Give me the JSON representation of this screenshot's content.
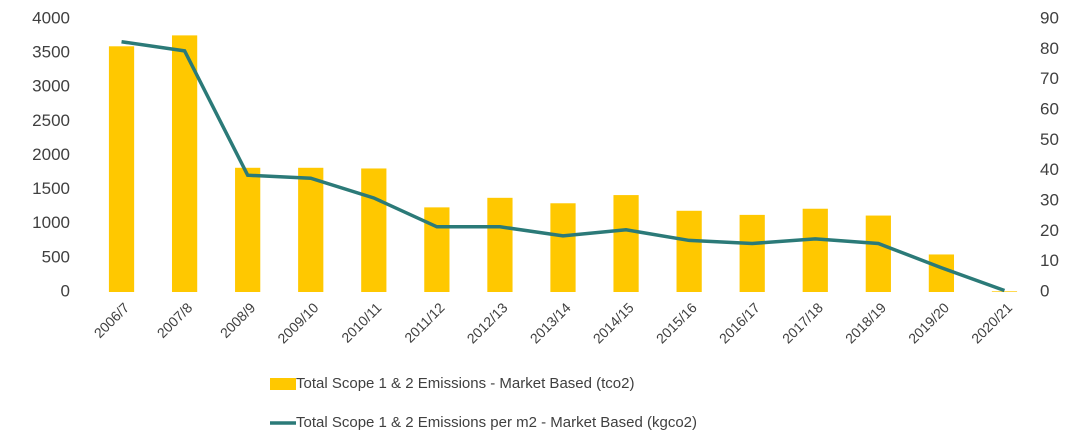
{
  "chart_data": {
    "type": "bar_line",
    "categories": [
      "2006/7",
      "2007/8",
      "2008/9",
      "2009/10",
      "2010/11",
      "2011/12",
      "2012/13",
      "2013/14",
      "2014/15",
      "2015/16",
      "2016/17",
      "2017/18",
      "2018/19",
      "2019/20",
      "2020/21"
    ],
    "series": [
      {
        "name": "Total Scope 1 & 2 Emissions - Market Based (tco2)",
        "type": "bar",
        "color": "#ffc800",
        "values": [
          3600,
          3760,
          1820,
          1820,
          1810,
          1240,
          1380,
          1300,
          1420,
          1190,
          1130,
          1220,
          1120,
          550,
          10
        ]
      },
      {
        "name": "Total Scope 1 & 2 Emissions per m2 - Market Based (kgco2)",
        "type": "line",
        "axis": "y2",
        "color": "#2b7a78",
        "values": [
          82.5,
          79.5,
          38.5,
          37.5,
          31,
          21.5,
          21.5,
          18.5,
          20.5,
          17,
          16,
          17.5,
          16,
          8,
          0.5
        ]
      }
    ],
    "ylim": [
      0,
      4000
    ],
    "yticks": [
      0,
      500,
      1000,
      1500,
      2000,
      2500,
      3000,
      3500,
      4000
    ],
    "y2lim": [
      0,
      90
    ],
    "y2ticks": [
      0,
      10,
      20,
      30,
      40,
      50,
      60,
      70,
      80,
      90
    ],
    "legend": "bottom"
  }
}
